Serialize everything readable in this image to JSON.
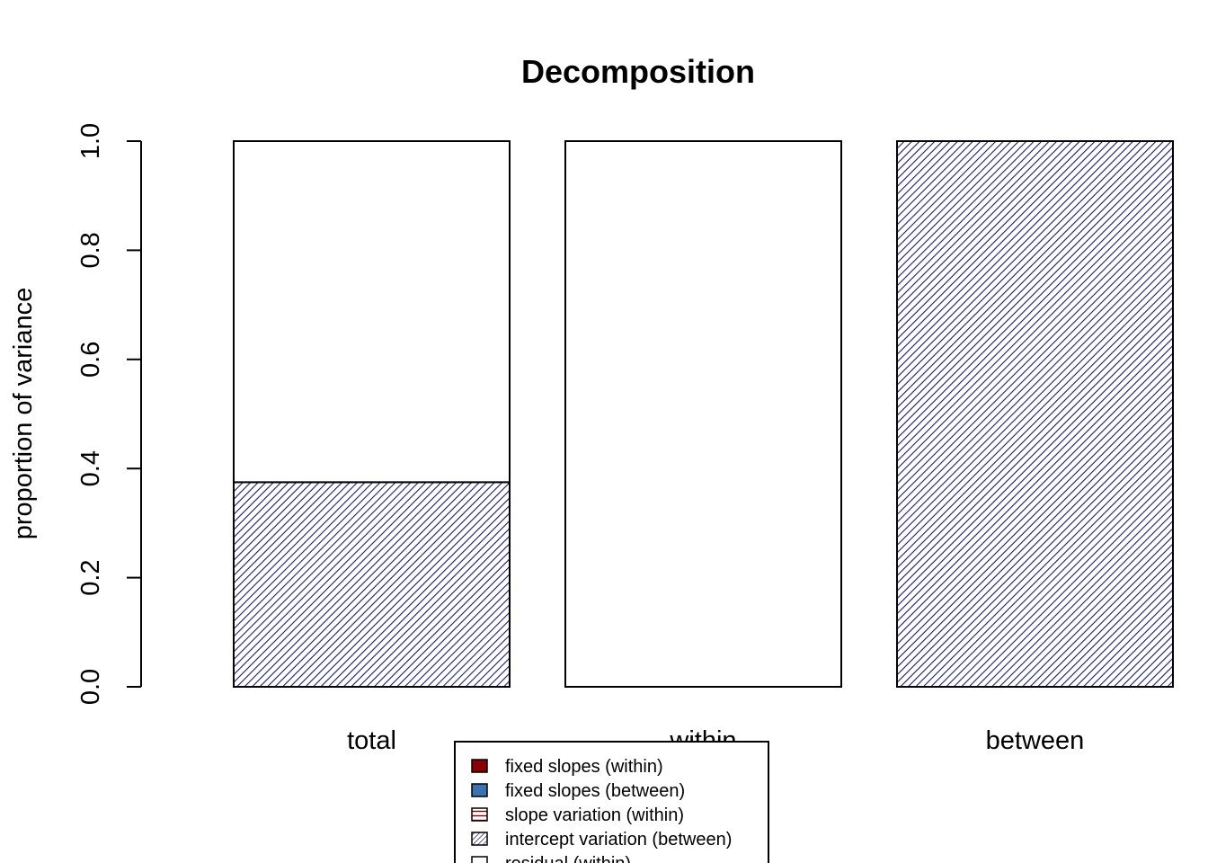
{
  "chart_data": {
    "type": "bar",
    "stacked": true,
    "title": "Decomposition",
    "xlabel": "",
    "ylabel": "proportion of variance",
    "ylim": [
      0,
      1
    ],
    "yticks": [
      "0.0",
      "0.2",
      "0.4",
      "0.6",
      "0.8",
      "1.0"
    ],
    "categories": [
      "total",
      "within",
      "between"
    ],
    "series": [
      {
        "name": "fixed slopes (within)",
        "values": [
          0,
          0,
          0
        ],
        "color": "#8b0000",
        "pattern": "solid"
      },
      {
        "name": "fixed slopes (between)",
        "values": [
          0,
          0,
          0
        ],
        "color": "#3b73b0",
        "pattern": "solid"
      },
      {
        "name": "slope variation (within)",
        "values": [
          0,
          0,
          0
        ],
        "color": "#8b0000",
        "pattern": "horizontal-lines"
      },
      {
        "name": "intercept variation (between)",
        "values": [
          0.375,
          0,
          1.0
        ],
        "color": "#1a1a6e",
        "pattern": "diagonal-lines"
      },
      {
        "name": "residual (within)",
        "values": [
          0.625,
          1.0,
          0
        ],
        "color": "#ffffff",
        "pattern": "none"
      }
    ],
    "legend": {
      "placement": "bottom-center"
    },
    "grid": false
  }
}
